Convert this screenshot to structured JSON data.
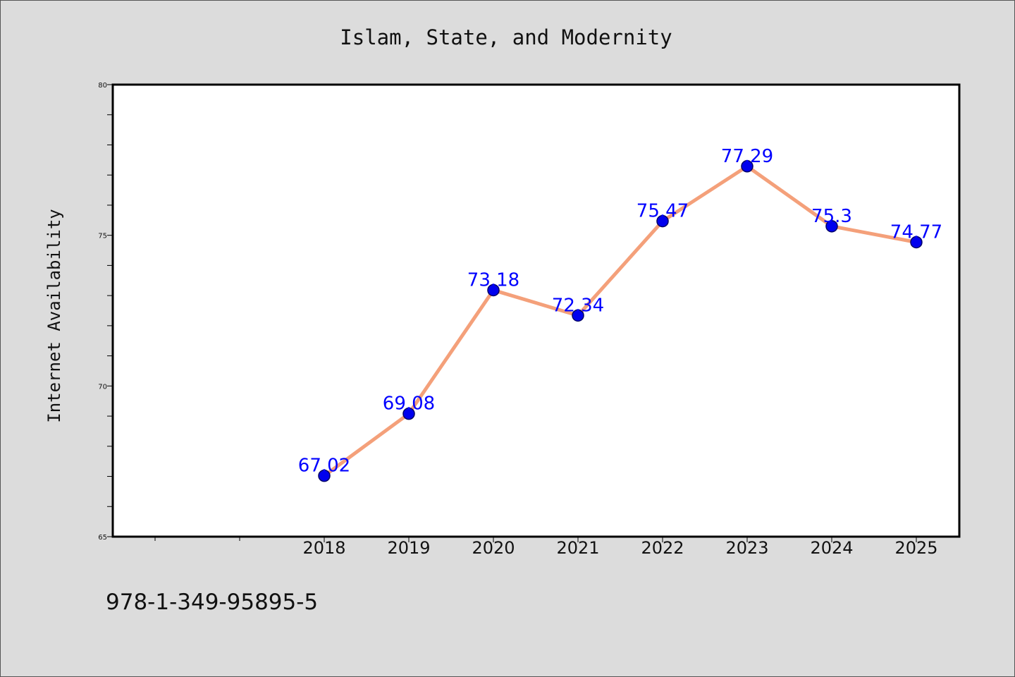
{
  "chart_data": {
    "type": "line",
    "title": "Islam, State, and Modernity",
    "xlabel": "",
    "ylabel": "Internet Availability",
    "categories": [
      "2018",
      "2019",
      "2020",
      "2021",
      "2022",
      "2023",
      "2024",
      "2025"
    ],
    "series": [
      {
        "values": [
          67.02,
          69.08,
          73.18,
          72.34,
          75.47,
          77.29,
          75.3,
          74.77
        ],
        "data_labels": [
          "67.02",
          "69.08",
          "73.18",
          "72.34",
          "75.47",
          "77.29",
          "75.3",
          "74.77"
        ]
      }
    ],
    "ylim": [
      65,
      80
    ],
    "yticks": [
      "65",
      "70",
      "75",
      "80"
    ],
    "grid": false,
    "legend": "none",
    "colors": {
      "line": "#f4a07a",
      "marker": "#0000ee",
      "marker_edge": "#000066",
      "data_label": "#0000ff",
      "background": "#dcdcdc",
      "plot_background": "#ffffff"
    }
  },
  "footer": {
    "isbn": "978-1-349-95895-5"
  }
}
